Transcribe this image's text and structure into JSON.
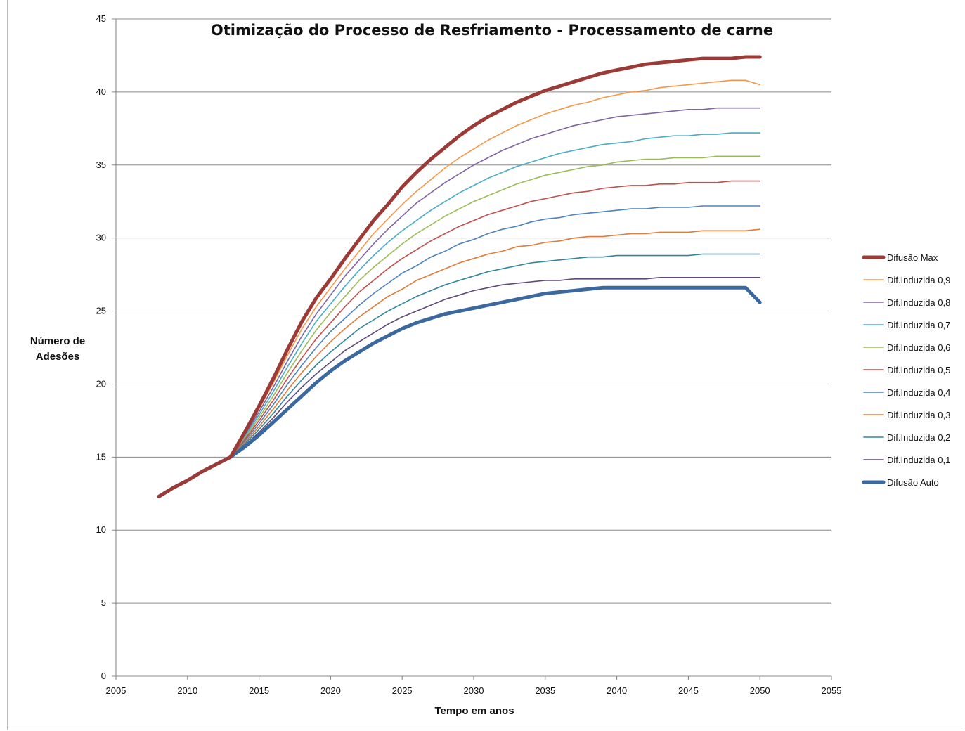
{
  "chart_data": {
    "type": "line",
    "title": "Otimização do Processo de Resfriamento - Processamento de carne",
    "xlabel": "Tempo  em anos",
    "ylabel": [
      "Número de",
      "Adesões"
    ],
    "xlim": [
      2005,
      2055
    ],
    "ylim": [
      0,
      45
    ],
    "xticks": [
      "2005",
      "2010",
      "2015",
      "2020",
      "2025",
      "2030",
      "2035",
      "2040",
      "2045",
      "2050",
      "2055"
    ],
    "yticks": [
      "0",
      "5",
      "10",
      "15",
      "20",
      "25",
      "30",
      "35",
      "40",
      "45"
    ],
    "grid": "horizontal",
    "legend_position": "right",
    "x": [
      2008,
      2009,
      2010,
      2011,
      2012,
      2013,
      2014,
      2015,
      2016,
      2017,
      2018,
      2019,
      2020,
      2021,
      2022,
      2023,
      2024,
      2025,
      2026,
      2027,
      2028,
      2029,
      2030,
      2031,
      2032,
      2033,
      2034,
      2035,
      2036,
      2037,
      2038,
      2039,
      2040,
      2041,
      2042,
      2043,
      2044,
      2045,
      2046,
      2047,
      2048,
      2049,
      2050
    ],
    "series": [
      {
        "name": "Difusão Max",
        "color": "#9b3a36",
        "width": 5,
        "values": [
          12.3,
          12.9,
          13.4,
          14.0,
          14.5,
          15.0,
          16.7,
          18.5,
          20.4,
          22.4,
          24.3,
          25.9,
          27.2,
          28.6,
          29.9,
          31.2,
          32.3,
          33.5,
          34.5,
          35.4,
          36.2,
          37.0,
          37.7,
          38.3,
          38.8,
          39.3,
          39.7,
          40.1,
          40.4,
          40.7,
          41.0,
          41.3,
          41.5,
          41.7,
          41.9,
          42.0,
          42.1,
          42.2,
          42.3,
          42.3,
          42.3,
          42.4,
          42.4
        ]
      },
      {
        "name": "Dif.Induzida  0,9",
        "color": "#f79646",
        "width": 1.6,
        "values": [
          12.3,
          12.9,
          13.4,
          14.0,
          14.5,
          15.0,
          16.6,
          18.3,
          20.1,
          22.0,
          23.8,
          25.3,
          26.6,
          27.9,
          29.1,
          30.3,
          31.3,
          32.3,
          33.2,
          34.0,
          34.8,
          35.5,
          36.1,
          36.7,
          37.2,
          37.7,
          38.1,
          38.5,
          38.8,
          39.1,
          39.3,
          39.6,
          39.8,
          40.0,
          40.1,
          40.3,
          40.4,
          40.5,
          40.6,
          40.7,
          40.8,
          40.8,
          40.5
        ]
      },
      {
        "name": "Dif.Induzida  0,8",
        "color": "#8064a2",
        "width": 1.6,
        "values": [
          12.3,
          12.9,
          13.4,
          14.0,
          14.5,
          15.0,
          16.5,
          18.1,
          19.8,
          21.6,
          23.3,
          24.8,
          26.1,
          27.4,
          28.5,
          29.6,
          30.6,
          31.5,
          32.4,
          33.1,
          33.8,
          34.4,
          35.0,
          35.5,
          36.0,
          36.4,
          36.8,
          37.1,
          37.4,
          37.7,
          37.9,
          38.1,
          38.3,
          38.4,
          38.5,
          38.6,
          38.7,
          38.8,
          38.8,
          38.9,
          38.9,
          38.9,
          38.9
        ]
      },
      {
        "name": "Dif.Induzida  0,7",
        "color": "#4bacc6",
        "width": 1.6,
        "values": [
          12.3,
          12.9,
          13.4,
          14.0,
          14.5,
          15.0,
          16.4,
          17.9,
          19.5,
          21.2,
          22.8,
          24.3,
          25.5,
          26.7,
          27.8,
          28.8,
          29.7,
          30.5,
          31.2,
          31.9,
          32.5,
          33.1,
          33.6,
          34.1,
          34.5,
          34.9,
          35.2,
          35.5,
          35.8,
          36.0,
          36.2,
          36.4,
          36.5,
          36.6,
          36.8,
          36.9,
          37.0,
          37.0,
          37.1,
          37.1,
          37.2,
          37.2,
          37.2
        ]
      },
      {
        "name": "Dif.Induzida  0,6",
        "color": "#9bbb59",
        "width": 1.6,
        "values": [
          12.3,
          12.9,
          13.4,
          14.0,
          14.5,
          15.0,
          16.3,
          17.7,
          19.2,
          20.8,
          22.3,
          23.7,
          24.9,
          26.0,
          27.1,
          28.0,
          28.8,
          29.6,
          30.3,
          30.9,
          31.5,
          32.0,
          32.5,
          32.9,
          33.3,
          33.7,
          34.0,
          34.3,
          34.5,
          34.7,
          34.9,
          35.0,
          35.2,
          35.3,
          35.4,
          35.4,
          35.5,
          35.5,
          35.5,
          35.6,
          35.6,
          35.6,
          35.6
        ]
      },
      {
        "name": "Dif.Induzida  0,5",
        "color": "#c0504d",
        "width": 1.6,
        "values": [
          12.3,
          12.9,
          13.4,
          14.0,
          14.5,
          15.0,
          16.2,
          17.5,
          18.9,
          20.4,
          21.8,
          23.1,
          24.2,
          25.3,
          26.3,
          27.1,
          27.9,
          28.6,
          29.2,
          29.8,
          30.3,
          30.8,
          31.2,
          31.6,
          31.9,
          32.2,
          32.5,
          32.7,
          32.9,
          33.1,
          33.2,
          33.4,
          33.5,
          33.6,
          33.6,
          33.7,
          33.7,
          33.8,
          33.8,
          33.8,
          33.9,
          33.9,
          33.9
        ]
      },
      {
        "name": "Dif.Induzida  0,4",
        "color": "#4f81bd",
        "width": 1.6,
        "values": [
          12.3,
          12.9,
          13.4,
          14.0,
          14.5,
          15.0,
          16.1,
          17.3,
          18.6,
          20.0,
          21.3,
          22.5,
          23.6,
          24.5,
          25.4,
          26.2,
          26.9,
          27.6,
          28.1,
          28.7,
          29.1,
          29.6,
          29.9,
          30.3,
          30.6,
          30.8,
          31.1,
          31.3,
          31.4,
          31.6,
          31.7,
          31.8,
          31.9,
          32.0,
          32.0,
          32.1,
          32.1,
          32.1,
          32.2,
          32.2,
          32.2,
          32.2,
          32.2
        ]
      },
      {
        "name": "Dif.Induzida  0,3",
        "color": "#e07b39",
        "width": 1.6,
        "values": [
          12.3,
          12.9,
          13.4,
          14.0,
          14.5,
          15.0,
          16.0,
          17.1,
          18.3,
          19.6,
          20.8,
          21.9,
          22.9,
          23.8,
          24.6,
          25.3,
          26.0,
          26.5,
          27.1,
          27.5,
          27.9,
          28.3,
          28.6,
          28.9,
          29.1,
          29.4,
          29.5,
          29.7,
          29.8,
          30.0,
          30.1,
          30.1,
          30.2,
          30.3,
          30.3,
          30.4,
          30.4,
          30.4,
          30.5,
          30.5,
          30.5,
          30.5,
          30.6
        ]
      },
      {
        "name": "Dif.Induzida  0,2",
        "color": "#31859c",
        "width": 1.6,
        "values": [
          12.3,
          12.9,
          13.4,
          14.0,
          14.5,
          15.0,
          15.9,
          16.9,
          18.0,
          19.2,
          20.3,
          21.3,
          22.2,
          23.0,
          23.8,
          24.4,
          25.0,
          25.5,
          26.0,
          26.4,
          26.8,
          27.1,
          27.4,
          27.7,
          27.9,
          28.1,
          28.3,
          28.4,
          28.5,
          28.6,
          28.7,
          28.7,
          28.8,
          28.8,
          28.8,
          28.8,
          28.8,
          28.8,
          28.9,
          28.9,
          28.9,
          28.9,
          28.9
        ]
      },
      {
        "name": "Dif.Induzida  0,1",
        "color": "#5f497a",
        "width": 1.6,
        "values": [
          12.3,
          12.9,
          13.4,
          14.0,
          14.5,
          15.0,
          15.8,
          16.7,
          17.7,
          18.8,
          19.8,
          20.7,
          21.5,
          22.3,
          22.9,
          23.5,
          24.1,
          24.6,
          25.0,
          25.4,
          25.8,
          26.1,
          26.4,
          26.6,
          26.8,
          26.9,
          27.0,
          27.1,
          27.1,
          27.2,
          27.2,
          27.2,
          27.2,
          27.2,
          27.2,
          27.3,
          27.3,
          27.3,
          27.3,
          27.3,
          27.3,
          27.3,
          27.3
        ]
      },
      {
        "name": "Difusão Auto",
        "color": "#3c68a0",
        "width": 5,
        "values": [
          12.3,
          12.9,
          13.4,
          14.0,
          14.5,
          15.0,
          15.7,
          16.5,
          17.4,
          18.3,
          19.2,
          20.1,
          20.9,
          21.6,
          22.2,
          22.8,
          23.3,
          23.8,
          24.2,
          24.5,
          24.8,
          25.0,
          25.2,
          25.4,
          25.6,
          25.8,
          26.0,
          26.2,
          26.3,
          26.4,
          26.5,
          26.6,
          26.6,
          26.6,
          26.6,
          26.6,
          26.6,
          26.6,
          26.6,
          26.6,
          26.6,
          26.6,
          25.6
        ]
      }
    ]
  }
}
